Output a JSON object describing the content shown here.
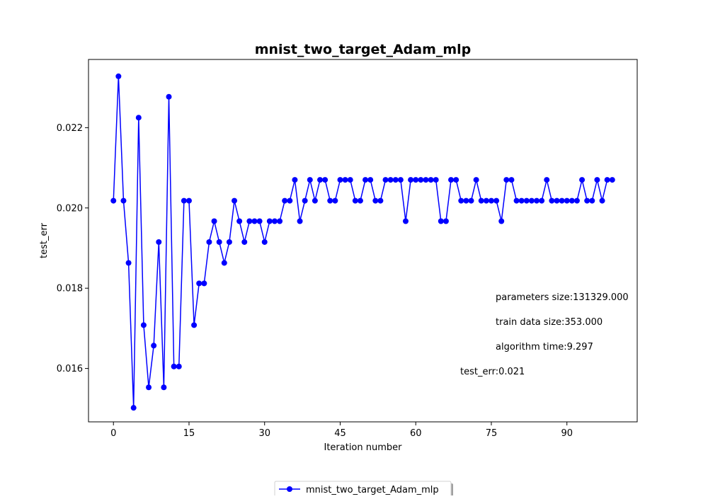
{
  "chart_data": {
    "type": "line",
    "title": "mnist_two_target_Adam_mlp",
    "xlabel": "Iteration number",
    "ylabel": "test_err",
    "xlim": [
      -4.95,
      103.95
    ],
    "ylim": [
      0.01467,
      0.0237
    ],
    "xticks": [
      0,
      15,
      30,
      45,
      60,
      75,
      90
    ],
    "yticks": [
      0.016,
      0.018,
      0.02,
      0.022
    ],
    "ytick_labels": [
      "0.016",
      "0.018",
      "0.020",
      "0.022"
    ],
    "grid": false,
    "legend_position": "bottom-center",
    "series": [
      {
        "name": "mnist_two_target_Adam_mlp",
        "color": "#0000ff",
        "marker": "circle",
        "values": [
          0.02018,
          0.02328,
          0.02018,
          0.01863,
          0.01502,
          0.02225,
          0.01708,
          0.01553,
          0.01657,
          0.01915,
          0.01553,
          0.02277,
          0.01605,
          0.01605,
          0.02018,
          0.02018,
          0.01708,
          0.01812,
          0.01812,
          0.01915,
          0.01967,
          0.01915,
          0.01863,
          0.01915,
          0.02018,
          0.01967,
          0.01915,
          0.01967,
          0.01967,
          0.01967,
          0.01915,
          0.01967,
          0.01967,
          0.01967,
          0.02018,
          0.02018,
          0.0207,
          0.01967,
          0.02018,
          0.0207,
          0.02018,
          0.0207,
          0.0207,
          0.02018,
          0.02018,
          0.0207,
          0.0207,
          0.0207,
          0.02018,
          0.02018,
          0.0207,
          0.0207,
          0.02018,
          0.02018,
          0.0207,
          0.0207,
          0.0207,
          0.0207,
          0.01967,
          0.0207,
          0.0207,
          0.0207,
          0.0207,
          0.0207,
          0.0207,
          0.01967,
          0.01967,
          0.0207,
          0.0207,
          0.02018,
          0.02018,
          0.02018,
          0.0207,
          0.02018,
          0.02018,
          0.02018,
          0.02018,
          0.01967,
          0.0207,
          0.0207,
          0.02018,
          0.02018,
          0.02018,
          0.02018,
          0.02018,
          0.02018,
          0.0207,
          0.02018,
          0.02018,
          0.02018,
          0.02018,
          0.02018,
          0.02018,
          0.0207,
          0.02018,
          0.02018,
          0.0207,
          0.02018,
          0.0207,
          0.0207
        ]
      }
    ],
    "annotations": [
      "parameters size:131329.000",
      "train data size:353.000",
      "algorithm time:9.297",
      "test_err:0.021"
    ]
  }
}
